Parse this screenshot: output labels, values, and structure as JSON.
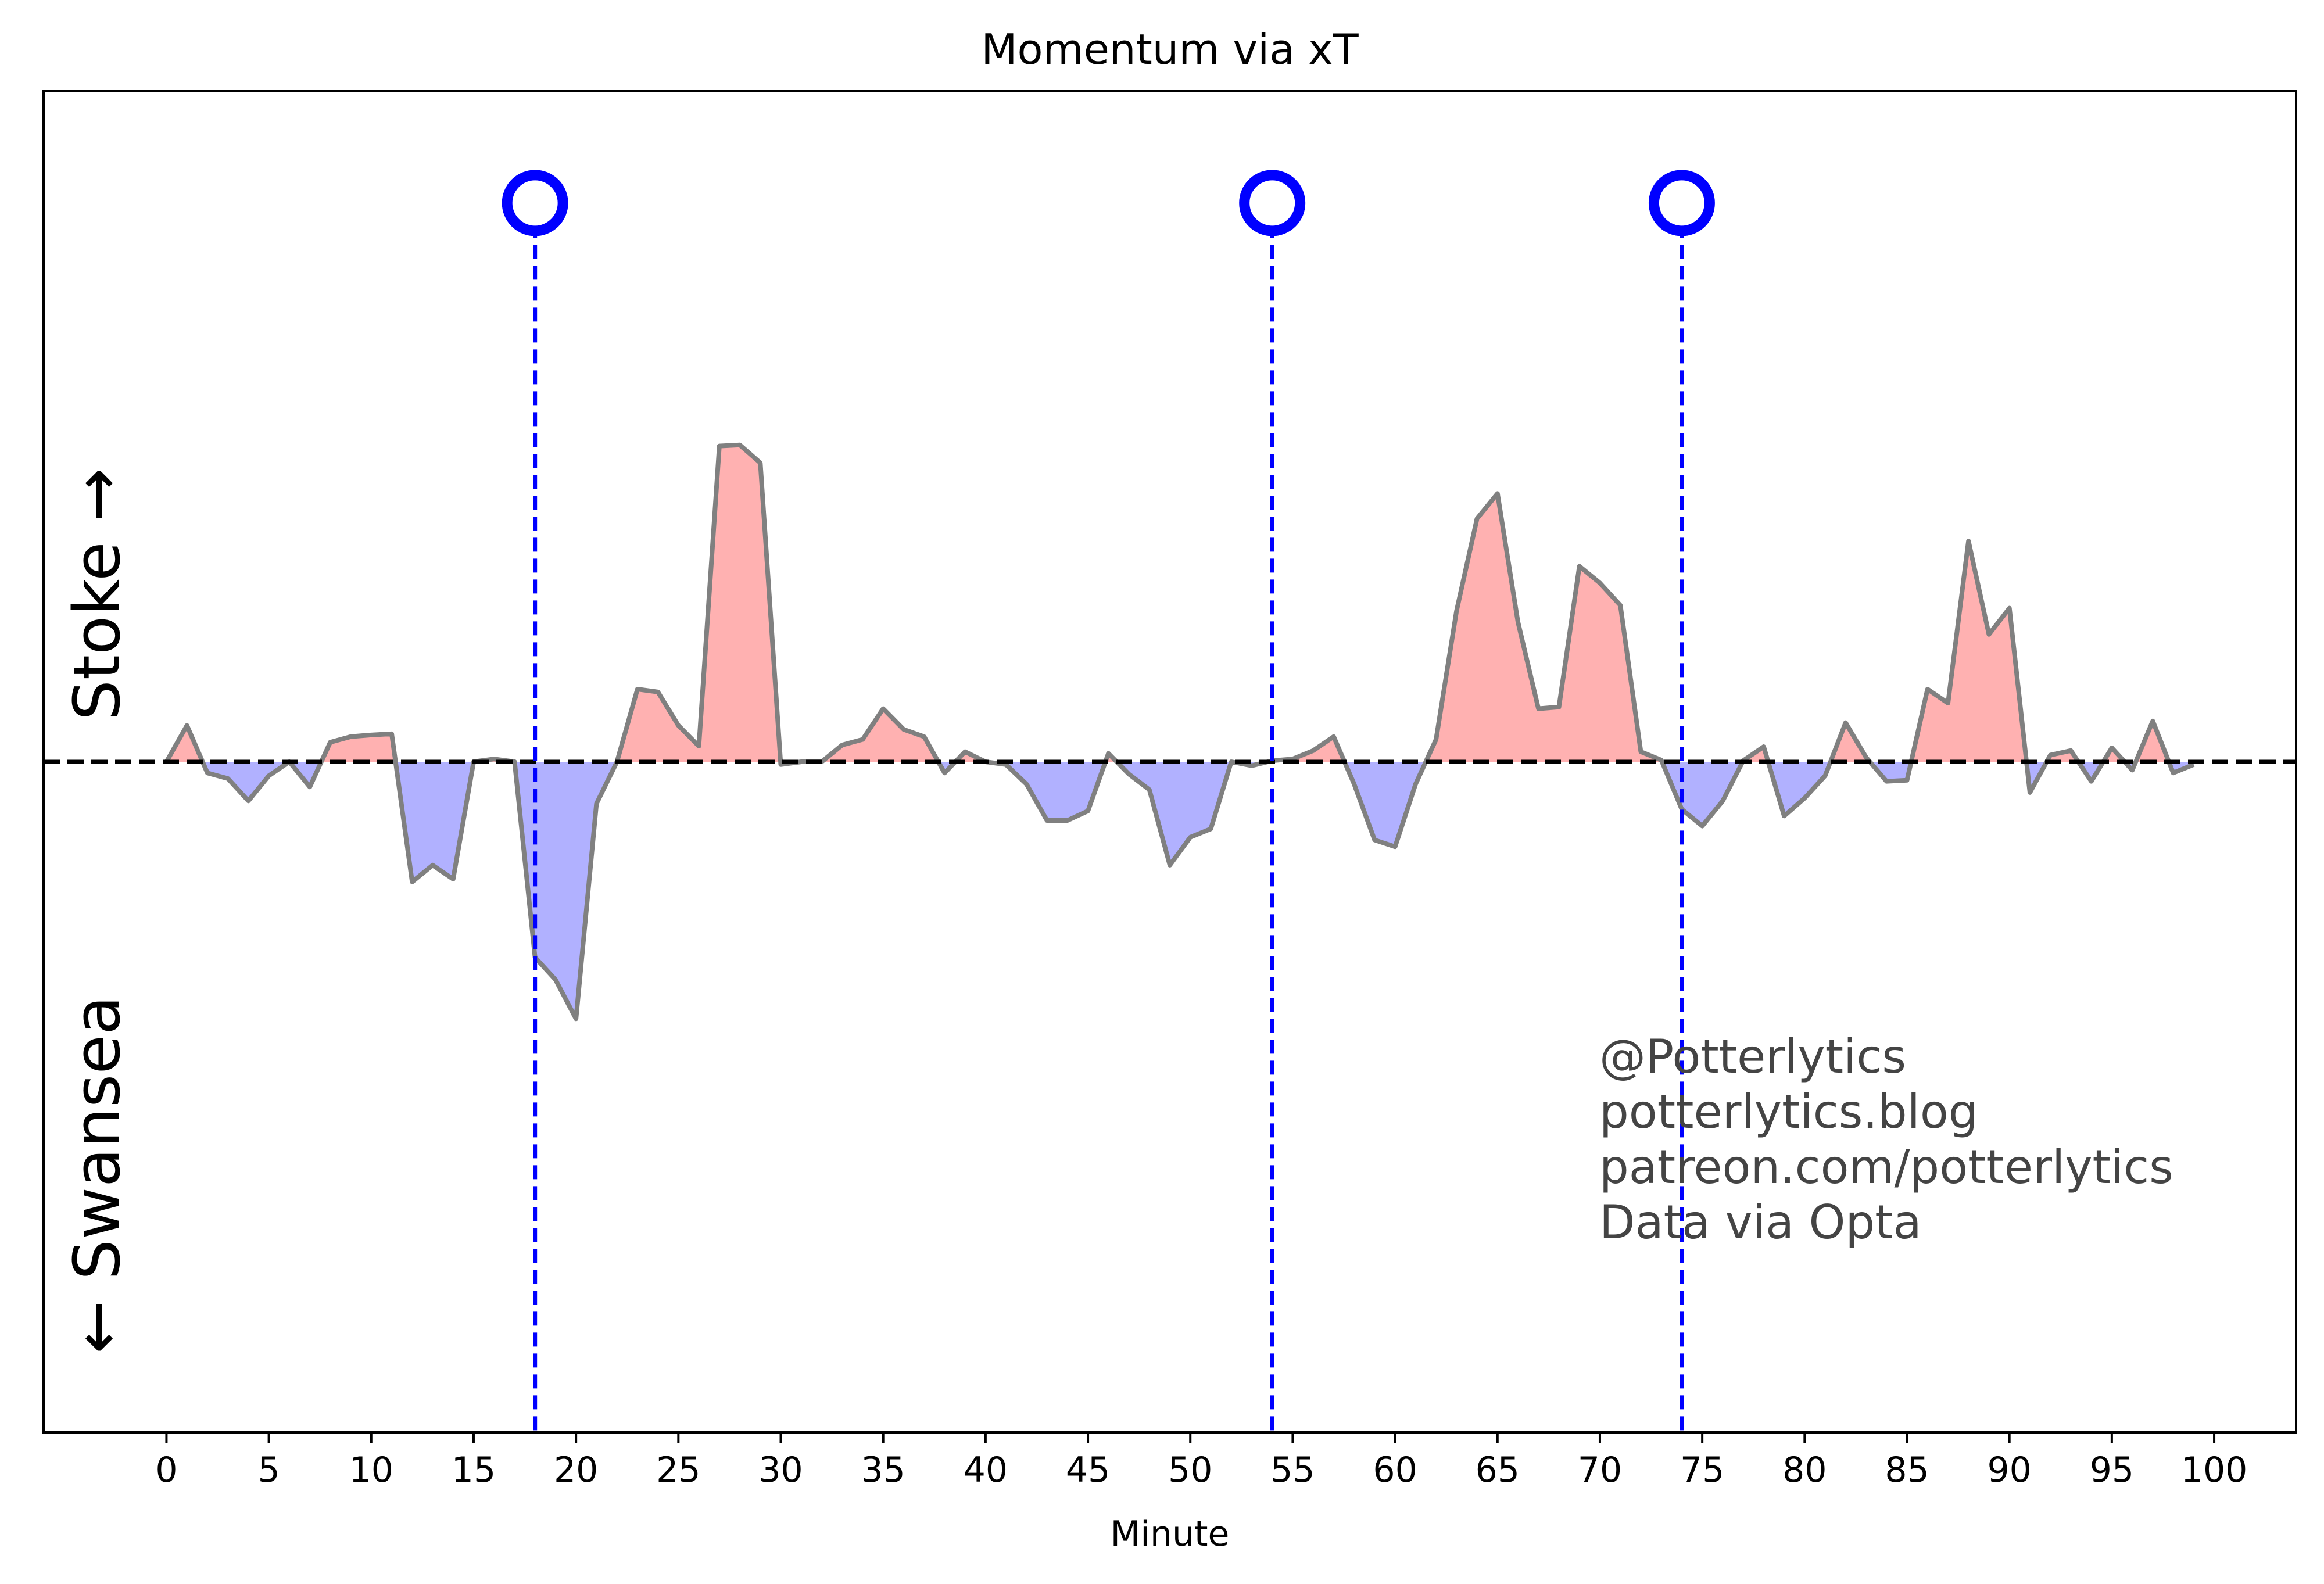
{
  "chart_data": {
    "type": "area",
    "title": "Momentum via xT",
    "xlabel": "Minute",
    "ylabel": "",
    "team_up_label": "Stoke →",
    "team_down_label": "← Swansea",
    "xlim": [
      -6,
      104
    ],
    "ylim": [
      -1.2,
      1.2
    ],
    "xticks": [
      0,
      5,
      10,
      15,
      20,
      25,
      30,
      35,
      40,
      45,
      50,
      55,
      60,
      65,
      70,
      75,
      80,
      85,
      90,
      95,
      100
    ],
    "yticks_visible": false,
    "grid": false,
    "colors": {
      "positive_fill": "#ffb1b1",
      "negative_fill": "#b1b1ff",
      "line": "#808080",
      "goal_marker": "#0000ff",
      "zero_line": "#000000"
    },
    "goals": [
      {
        "minute": 18,
        "marker_y": 1.0
      },
      {
        "minute": 54,
        "marker_y": 1.0
      },
      {
        "minute": 74,
        "marker_y": 1.0
      }
    ],
    "series": [
      {
        "x": [
          0,
          1,
          2,
          3,
          4,
          5,
          6,
          7,
          8,
          9,
          10,
          11,
          12,
          13,
          14,
          15,
          16,
          17,
          18,
          19,
          20,
          21,
          22,
          23,
          24,
          25,
          26,
          27,
          28,
          29,
          30,
          31,
          32,
          33,
          34,
          35,
          36,
          37,
          38,
          39,
          40,
          41,
          42,
          43,
          44,
          45,
          46,
          47,
          48,
          49,
          50,
          51,
          52,
          53,
          54,
          55,
          56,
          57,
          58,
          59,
          60,
          61,
          62,
          63,
          64,
          65,
          66,
          67,
          68,
          69,
          70,
          71,
          72,
          73,
          74,
          75,
          76,
          77,
          78,
          79,
          80,
          81,
          82,
          83,
          84,
          85,
          86,
          87,
          88,
          89,
          90,
          91,
          92,
          93,
          94,
          95,
          96,
          97,
          98,
          99
        ],
        "values": [
          0,
          0.065,
          -0.02,
          -0.03,
          -0.07,
          -0.025,
          0,
          -0.045,
          0.035,
          0.045,
          0.048,
          0.05,
          -0.215,
          -0.185,
          -0.21,
          0,
          0.005,
          0,
          -0.35,
          -0.39,
          -0.46,
          -0.075,
          0,
          0.13,
          0.125,
          0.065,
          0.028,
          0.565,
          0.567,
          0.535,
          -0.005,
          0,
          0,
          0.03,
          0.04,
          0.095,
          0.058,
          0.045,
          -0.02,
          0.018,
          0,
          -0.005,
          -0.04,
          -0.105,
          -0.105,
          -0.088,
          0.015,
          -0.022,
          -0.05,
          -0.185,
          -0.135,
          -0.12,
          0,
          -0.007,
          0.002,
          0.005,
          0.02,
          0.045,
          -0.04,
          -0.14,
          -0.152,
          -0.04,
          0.04,
          0.27,
          0.435,
          0.48,
          0.25,
          0.095,
          0.098,
          0.35,
          0.32,
          0.28,
          0.018,
          0.003,
          -0.085,
          -0.115,
          -0.07,
          0.002,
          0.027,
          -0.097,
          -0.065,
          -0.025,
          0.07,
          0.008,
          -0.035,
          -0.033,
          0.13,
          0.105,
          0.395,
          0.228,
          0.275,
          -0.055,
          0.012,
          0.02,
          -0.035,
          0.025,
          -0.015,
          0.073,
          -0.02,
          -0.005
        ]
      }
    ]
  },
  "credits": {
    "line1": "@Potterlytics",
    "line2": "potterlytics.blog",
    "line3": "patreon.com/potterlytics",
    "line4": "Data via Opta"
  }
}
